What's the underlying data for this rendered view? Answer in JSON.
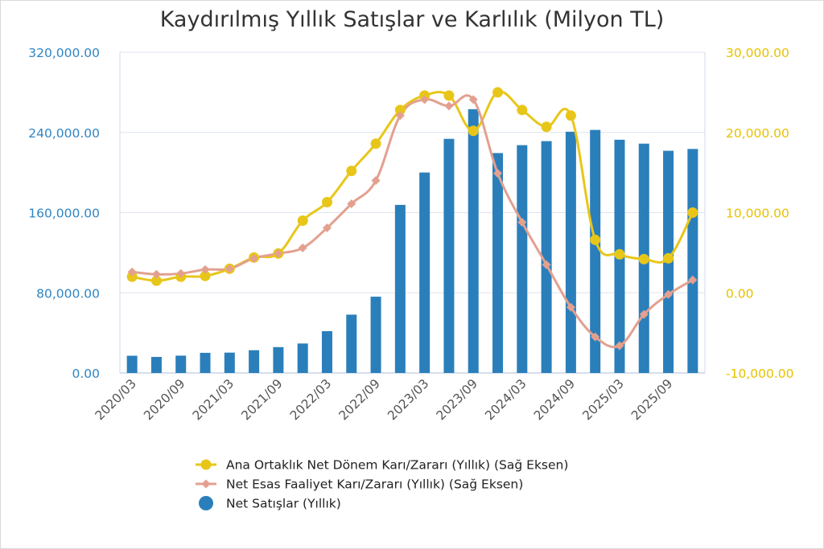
{
  "chart_data": {
    "type": "bar",
    "title": "Kaydırılmış Yıllık Satışlar ve Karlılık (Milyon TL)",
    "x_tick_labels": [
      "2020/03",
      "2020/09",
      "2021/03",
      "2021/09",
      "2022/03",
      "2022/09",
      "2023/03",
      "2023/09",
      "2024/03",
      "2024/09",
      "2025/03",
      "2025/09"
    ],
    "left_axis": {
      "ylim": [
        0,
        320000
      ],
      "ticks": [
        "0.00",
        "80,000.00",
        "160,000.00",
        "240,000.00",
        "320,000.00"
      ],
      "tick_values": [
        0,
        80000,
        160000,
        240000,
        320000
      ]
    },
    "right_axis": {
      "ylim": [
        -10000,
        30000
      ],
      "ticks": [
        "-10,000.00",
        "0.00",
        "10,000.00",
        "20,000.00",
        "30,000.00"
      ],
      "tick_values": [
        -10000,
        0,
        10000,
        20000,
        30000
      ]
    },
    "grid": "horizontal",
    "legend_position": "bottom",
    "series": [
      {
        "name": "Ana Ortaklık Net Dönem Karı/Zararı (Yıllık) (Sağ Eksen)",
        "type": "line",
        "axis": "right",
        "color": "#e8c619",
        "marker": "circle",
        "values": [
          2000,
          1500,
          2000,
          2100,
          3000,
          4400,
          4900,
          9000,
          11300,
          15200,
          18600,
          22800,
          24600,
          24600,
          20200,
          25000,
          22800,
          20700,
          22100,
          6600,
          4800,
          4200,
          4300,
          10000
        ]
      },
      {
        "name": "Net Esas Faaliyet Karı/Zararı (Yıllık) (Sağ Eksen)",
        "type": "line",
        "axis": "right",
        "color": "#e3a08f",
        "marker": "diamond",
        "values": [
          2600,
          2300,
          2400,
          2900,
          3000,
          4300,
          4900,
          5600,
          8100,
          11100,
          14000,
          22100,
          24100,
          23300,
          24100,
          14900,
          8800,
          3500,
          -1800,
          -5500,
          -6600,
          -2700,
          -200,
          1600
        ]
      },
      {
        "name": "Net Satışlar (Yıllık)",
        "type": "bar",
        "axis": "left",
        "color": "#2a7fbb",
        "marker": "circle",
        "values": [
          17200,
          16000,
          17300,
          20100,
          20300,
          22700,
          25800,
          29400,
          41700,
          58200,
          76100,
          167700,
          200000,
          233600,
          263200,
          219400,
          227300,
          231300,
          240700,
          242500,
          232700,
          228800,
          221700,
          223500
        ]
      }
    ]
  }
}
